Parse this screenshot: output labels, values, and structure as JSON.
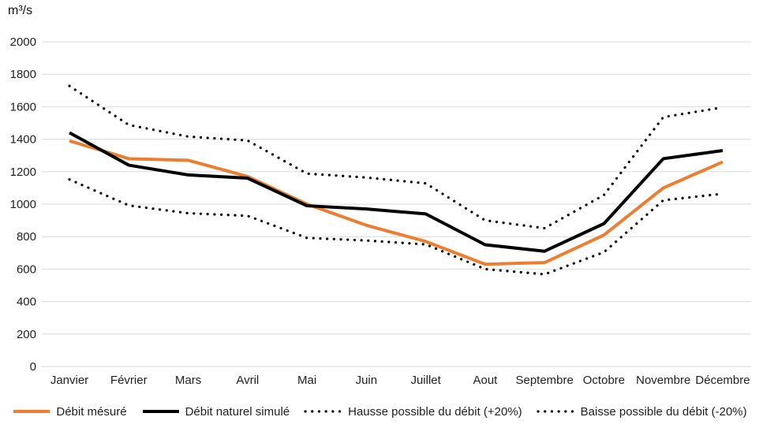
{
  "chart_data": {
    "type": "line",
    "title": "",
    "ylabel": "m³/s",
    "xlabel": "",
    "ylim": [
      0,
      2000
    ],
    "yticks": [
      0,
      200,
      400,
      600,
      800,
      1000,
      1200,
      1400,
      1600,
      1800,
      2000
    ],
    "grid": true,
    "legend_position": "bottom",
    "categories": [
      "Janvier",
      "Février",
      "Mars",
      "Avril",
      "Mai",
      "Juin",
      "Juillet",
      "Aout",
      "Septembre",
      "Octobre",
      "Novembre",
      "Décembre"
    ],
    "series": [
      {
        "key": "debit-mesure",
        "name": "Débit mésuré",
        "style": "solid",
        "color": "#ED7D31",
        "values": [
          1390,
          1280,
          1270,
          1170,
          1000,
          870,
          770,
          630,
          640,
          810,
          1100,
          1260
        ]
      },
      {
        "key": "debit-naturel-simule",
        "name": "Débit naturel simulé",
        "style": "solid",
        "color": "#000000",
        "values": [
          1440,
          1240,
          1180,
          1160,
          990,
          970,
          940,
          750,
          710,
          880,
          1280,
          1330
        ]
      },
      {
        "key": "hausse-possible-20",
        "name": "Hausse possible du débit (+20%)",
        "style": "dotted",
        "color": "#000000",
        "values": [
          1728,
          1488,
          1416,
          1392,
          1188,
          1164,
          1128,
          900,
          852,
          1056,
          1536,
          1596
        ]
      },
      {
        "key": "baisse-possible-20",
        "name": "Baisse possible du débit (-20%)",
        "style": "dotted",
        "color": "#000000",
        "values": [
          1152,
          992,
          944,
          928,
          792,
          776,
          752,
          600,
          568,
          704,
          1024,
          1064
        ]
      }
    ],
    "gridline_color": "#D9D9D9"
  }
}
